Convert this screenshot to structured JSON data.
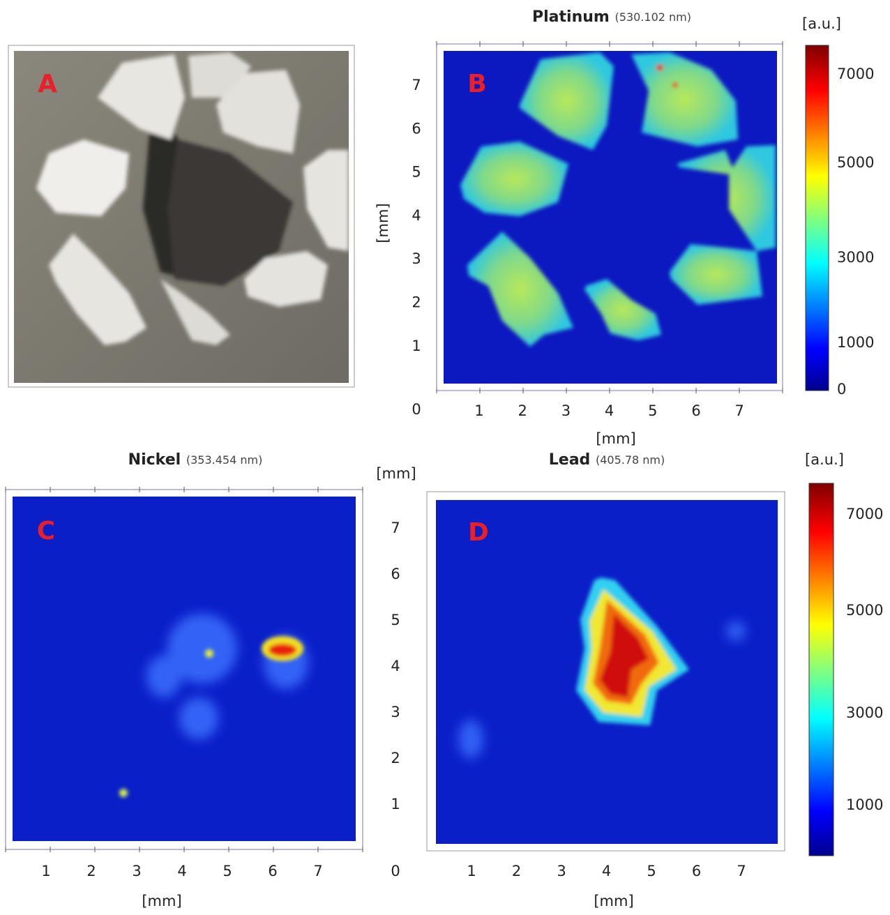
{
  "panels": {
    "A": {
      "label": "A"
    },
    "B": {
      "label": "B",
      "title": "Platinum",
      "wavelength": "(530.102 nm)"
    },
    "C": {
      "label": "C",
      "title": "Nickel",
      "wavelength": "(353.454 nm)"
    },
    "D": {
      "label": "D",
      "title": "Lead",
      "wavelength": "(405.78 nm)"
    }
  },
  "axes": {
    "top": {
      "x_ticks": [
        1,
        2,
        3,
        4,
        5,
        6,
        7
      ],
      "y_ticks": [
        7,
        6,
        5,
        4,
        3,
        2,
        1
      ],
      "origin": 0,
      "x_label": "[mm]",
      "y_label": "[mm]"
    },
    "bottom_left": {
      "x_ticks": [
        1,
        2,
        3,
        4,
        5,
        6,
        7
      ],
      "x_label": "[mm]"
    },
    "bottom_middle": {
      "y_label": "[mm]",
      "y_ticks": [
        7,
        6,
        5,
        4,
        3,
        2,
        1
      ],
      "origin": 0
    },
    "bottom_right": {
      "x_ticks": [
        1,
        2,
        3,
        4,
        5,
        6,
        7
      ],
      "x_label": "[mm]"
    }
  },
  "colorbars": [
    {
      "unit": "[a.u.]",
      "ticks": [
        7000,
        5000,
        3000,
        1000,
        0
      ]
    },
    {
      "unit": "[a.u.]",
      "ticks": [
        7000,
        5000,
        3000,
        1000
      ]
    }
  ]
}
